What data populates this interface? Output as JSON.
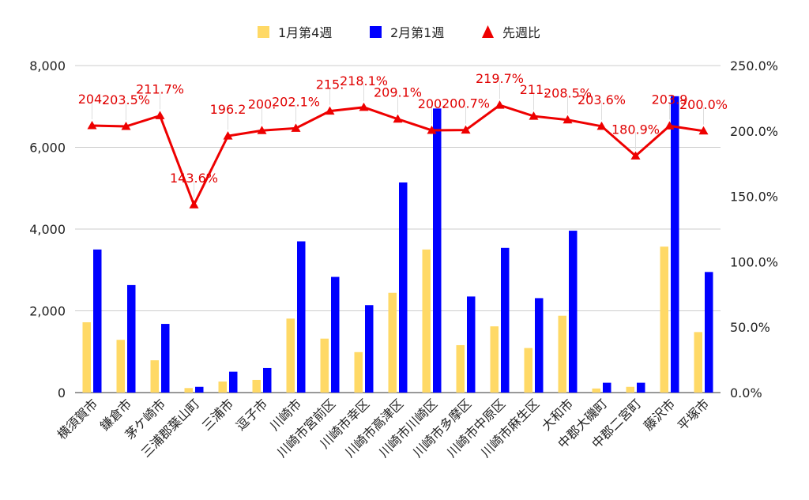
{
  "chart_data": {
    "type": "bar",
    "categories": [
      "横須賀市",
      "鎌倉市",
      "茅ケ崎市",
      "三浦郡葉山町",
      "三浦市",
      "逗子市",
      "川崎市",
      "川崎市宮前区",
      "川崎市幸区",
      "川崎市高津区",
      "川崎市川崎区",
      "川崎市多摩区",
      "川崎市中原区",
      "川崎市麻生区",
      "大和市",
      "中郡大磯町",
      "中郡二宮町",
      "藤沢市",
      "平塚市"
    ],
    "series": [
      {
        "name": "1月第4週",
        "axis": "left",
        "color": "#ffd966",
        "values": [
          1720,
          1290,
          790,
          110,
          270,
          310,
          1810,
          1320,
          990,
          2440,
          3500,
          1160,
          1620,
          1090,
          1880,
          100,
          140,
          3570,
          1480
        ]
      },
      {
        "name": "2月第1週",
        "axis": "left",
        "color": "#0000ff",
        "values": [
          3500,
          2630,
          1680,
          140,
          510,
          600,
          3700,
          2830,
          2140,
          5140,
          6950,
          2350,
          3540,
          2310,
          3960,
          240,
          240,
          7250,
          2950
        ]
      },
      {
        "name": "先週比",
        "axis": "right",
        "type": "line",
        "color": "#ee0000",
        "marker": "triangle",
        "values": [
          204.1,
          203.5,
          211.7,
          143.6,
          196.2,
          200.3,
          202.1,
          215.2,
          218.1,
          209.1,
          200.5,
          200.7,
          219.7,
          211.3,
          208.5,
          203.6,
          180.9,
          203.9,
          200.0
        ],
        "labels": [
          "204.",
          "203.5%",
          "211.7%",
          "143.6%",
          "196.2",
          "200.",
          "202.1%",
          "215.",
          "218.1%",
          "209.1%",
          "200.",
          "200.7%",
          "219.7%",
          "211.",
          "208.5%",
          "203.6%",
          "180.9%",
          "203.9",
          "200.0%"
        ]
      }
    ],
    "y_left": {
      "min": 0,
      "max": 8000,
      "ticks": [
        "0",
        "2,000",
        "4,000",
        "6,000",
        "8,000"
      ],
      "tick_values": [
        0,
        2000,
        4000,
        6000,
        8000
      ]
    },
    "y_right": {
      "min": 0,
      "max": 250,
      "ticks": [
        "0.0%",
        "50.0%",
        "100.0%",
        "150.0%",
        "200.0%",
        "250.0%"
      ],
      "tick_values": [
        0,
        50,
        100,
        150,
        200,
        250
      ]
    },
    "grid": true,
    "legend_position": "top-center",
    "gridline_color": "#cccccc",
    "axis_color": "#333333"
  }
}
